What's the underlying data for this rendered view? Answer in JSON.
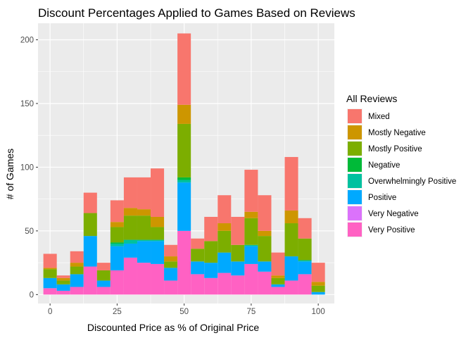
{
  "chart_data": {
    "type": "bar",
    "stacked": true,
    "title": "Discount Percentages Applied to Games Based on Reviews",
    "xlabel": "Discounted Price as % of Original Price",
    "ylabel": "# of Games",
    "xlim": [
      -4.5,
      106
    ],
    "ylim": [
      -7,
      213
    ],
    "x_ticks": [
      0,
      25,
      50,
      75,
      100
    ],
    "y_ticks": [
      0,
      50,
      100,
      150,
      200
    ],
    "bin_width": 5,
    "x": [
      0,
      5,
      10,
      15,
      20,
      25,
      30,
      35,
      40,
      45,
      50,
      55,
      60,
      65,
      70,
      75,
      80,
      85,
      90,
      95,
      100
    ],
    "legend": {
      "title": "All Reviews",
      "position": "right"
    },
    "series": [
      {
        "name": "Very Positive",
        "color": "#FF61C3",
        "values": [
          5,
          3,
          6,
          22,
          6,
          19,
          29,
          25,
          24,
          11,
          50,
          16,
          13,
          17,
          15,
          24,
          18,
          6,
          11,
          16,
          0
        ]
      },
      {
        "name": "Very Negative",
        "color": "#DB72FB",
        "values": [
          0,
          0,
          0,
          0,
          0,
          0,
          0,
          0,
          0,
          0,
          0,
          0,
          0,
          0,
          0,
          0,
          0,
          0,
          0,
          0,
          0
        ]
      },
      {
        "name": "Positive",
        "color": "#00A9FF",
        "values": [
          8,
          5,
          10,
          24,
          5,
          19,
          11,
          17,
          18,
          10,
          38,
          10,
          12,
          16,
          11,
          14,
          8,
          2,
          19,
          10,
          2
        ]
      },
      {
        "name": "Overwhelmingly Positive",
        "color": "#00C19F",
        "values": [
          0,
          0,
          0,
          0,
          0,
          2,
          3,
          1,
          1,
          0,
          2,
          0,
          0,
          0,
          0,
          1,
          0,
          0,
          0,
          1,
          0
        ]
      },
      {
        "name": "Negative",
        "color": "#00BA38",
        "values": [
          0,
          0,
          0,
          0,
          0,
          1,
          0,
          0,
          0,
          0,
          2,
          0,
          0,
          0,
          0,
          0,
          0,
          0,
          0,
          0,
          0
        ]
      },
      {
        "name": "Mostly Positive",
        "color": "#7CAE00",
        "values": [
          7,
          3,
          6,
          18,
          8,
          12,
          19,
          19,
          10,
          5,
          42,
          10,
          17,
          17,
          13,
          21,
          20,
          5,
          26,
          17,
          5
        ]
      },
      {
        "name": "Mostly Negative",
        "color": "#CD9600",
        "values": [
          1,
          2,
          3,
          0,
          0,
          4,
          6,
          5,
          8,
          4,
          15,
          0,
          0,
          6,
          0,
          5,
          4,
          2,
          10,
          0,
          3
        ]
      },
      {
        "name": "Mixed",
        "color": "#F8766D",
        "values": [
          11,
          2,
          9,
          16,
          6,
          17,
          24,
          25,
          38,
          9,
          56,
          8,
          19,
          22,
          22,
          33,
          28,
          18,
          42,
          16,
          15
        ]
      }
    ],
    "legend_order": [
      "Mixed",
      "Mostly Negative",
      "Mostly Positive",
      "Negative",
      "Overwhelmingly Positive",
      "Positive",
      "Very Negative",
      "Very Positive"
    ],
    "grid": true,
    "panel_background": "#EBEBEB",
    "grid_color": "#FFFFFF"
  }
}
